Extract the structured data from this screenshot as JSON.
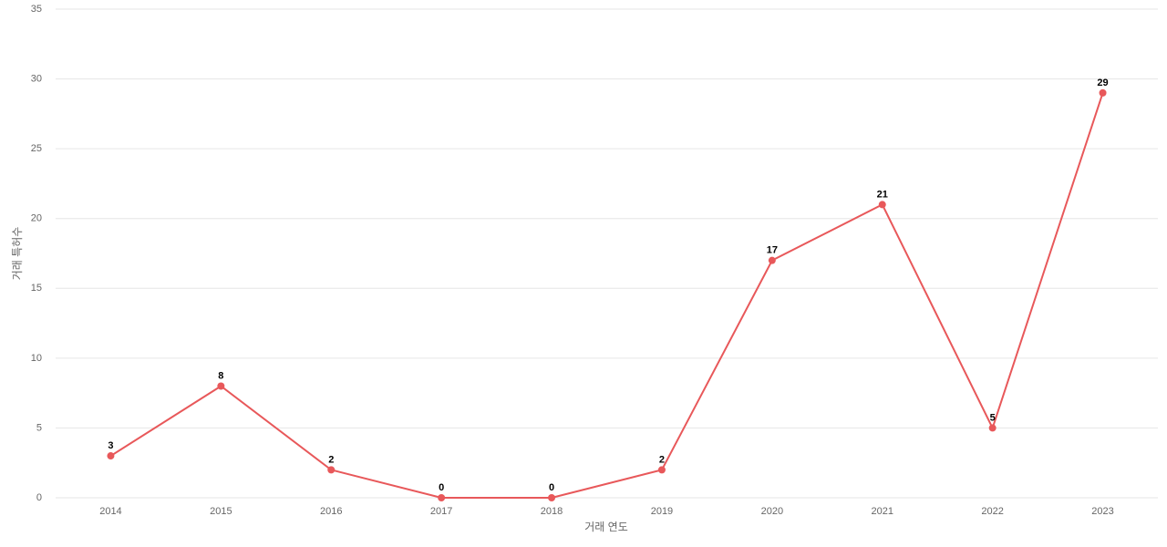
{
  "chart_data": {
    "type": "line",
    "x_label": "거래 연도",
    "y_label": "거래 특허수",
    "categories": [
      "2014",
      "2015",
      "2016",
      "2017",
      "2018",
      "2019",
      "2020",
      "2021",
      "2022",
      "2023"
    ],
    "values": [
      3,
      8,
      2,
      0,
      0,
      2,
      17,
      21,
      5,
      29
    ],
    "color": "#e8585a",
    "ylim": [
      0,
      35
    ],
    "yticks": [
      0,
      5,
      10,
      15,
      20,
      25,
      30,
      35
    ],
    "grid": true
  }
}
